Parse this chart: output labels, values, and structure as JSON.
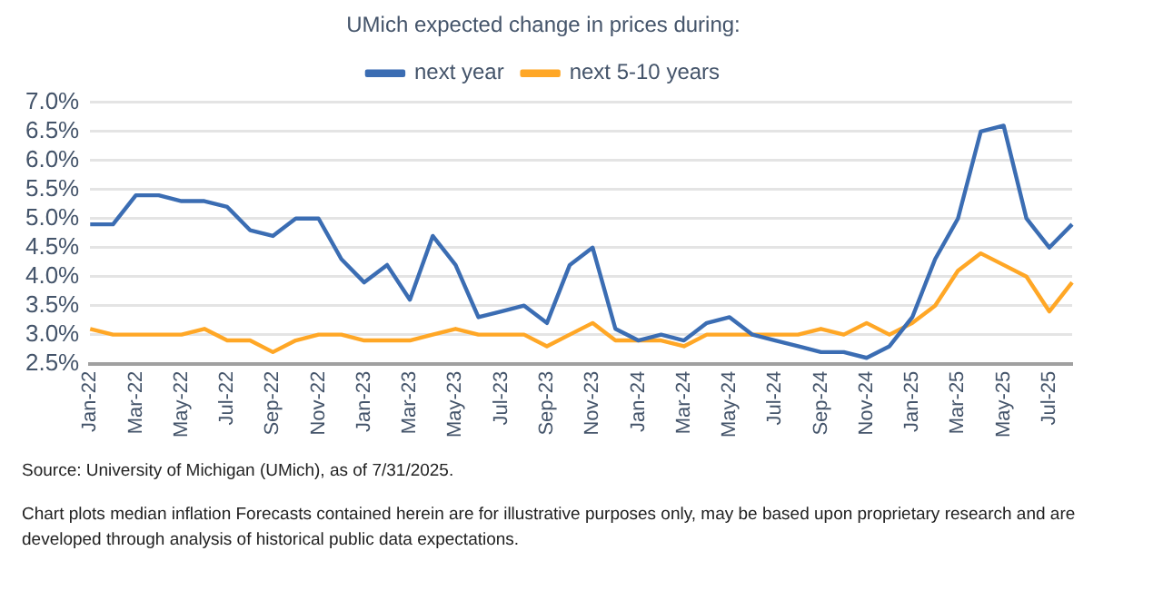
{
  "chart_data": {
    "type": "line",
    "legend_title": "UMich expected change in prices during:",
    "legend": "top",
    "categories": [
      "Jan-22",
      null,
      "Mar-22",
      null,
      "May-22",
      null,
      "Jul-22",
      null,
      "Sep-22",
      null,
      "Nov-22",
      null,
      "Jan-23",
      null,
      "Mar-23",
      null,
      "May-23",
      null,
      "Jul-23",
      null,
      "Sep-23",
      null,
      "Nov-23",
      null,
      "Jan-24",
      null,
      "Mar-24",
      null,
      "May-24",
      null,
      "Jul-24",
      null,
      "Sep-24",
      null,
      "Nov-24",
      null,
      "Jan-25",
      null,
      "Mar-25",
      null,
      "May-25",
      null,
      "Jul-25",
      null
    ],
    "series": [
      {
        "name": "next year",
        "color": "#3b6db3",
        "values": [
          4.9,
          4.9,
          5.4,
          5.4,
          5.3,
          5.3,
          5.2,
          4.8,
          4.7,
          5.0,
          5.0,
          4.3,
          3.9,
          4.2,
          3.6,
          4.7,
          4.2,
          3.3,
          3.4,
          3.5,
          3.2,
          4.2,
          4.5,
          3.1,
          2.9,
          3.0,
          2.9,
          3.2,
          3.3,
          3.0,
          2.9,
          2.8,
          2.7,
          2.7,
          2.6,
          2.8,
          3.3,
          4.3,
          5.0,
          6.5,
          6.6,
          5.0,
          4.5,
          4.9
        ]
      },
      {
        "name": "next 5-10 years",
        "color": "#ffa726",
        "values": [
          3.1,
          3.0,
          3.0,
          3.0,
          3.0,
          3.1,
          2.9,
          2.9,
          2.7,
          2.9,
          3.0,
          3.0,
          2.9,
          2.9,
          2.9,
          3.0,
          3.1,
          3.0,
          3.0,
          3.0,
          2.8,
          3.0,
          3.2,
          2.9,
          2.9,
          2.9,
          2.8,
          3.0,
          3.0,
          3.0,
          3.0,
          3.0,
          3.1,
          3.0,
          3.2,
          3.0,
          3.2,
          3.5,
          4.1,
          4.4,
          4.2,
          4.0,
          3.4,
          3.9
        ]
      }
    ],
    "ylim": [
      2.5,
      7.0
    ],
    "yticks": [
      {
        "value": 2.5,
        "label": "2.5%"
      },
      {
        "value": 3.0,
        "label": "3.0%"
      },
      {
        "value": 3.5,
        "label": "3.5%"
      },
      {
        "value": 4.0,
        "label": "4.0%"
      },
      {
        "value": 4.5,
        "label": "4.5%"
      },
      {
        "value": 5.0,
        "label": "5.0%"
      },
      {
        "value": 5.5,
        "label": "5.5%"
      },
      {
        "value": 6.0,
        "label": "6.0%"
      },
      {
        "value": 6.5,
        "label": "6.5%"
      },
      {
        "value": 7.0,
        "label": "7.0%"
      }
    ],
    "grid": "y",
    "marker": "none",
    "line_style": "solid",
    "annotations": [
      "Source: University of Michigan (UMich), as of 7/31/2025.",
      "Chart plots median inflation Forecasts contained herein are for illustrative purposes only, may be based upon proprietary research and are developed through analysis of historical public data expectations."
    ]
  }
}
